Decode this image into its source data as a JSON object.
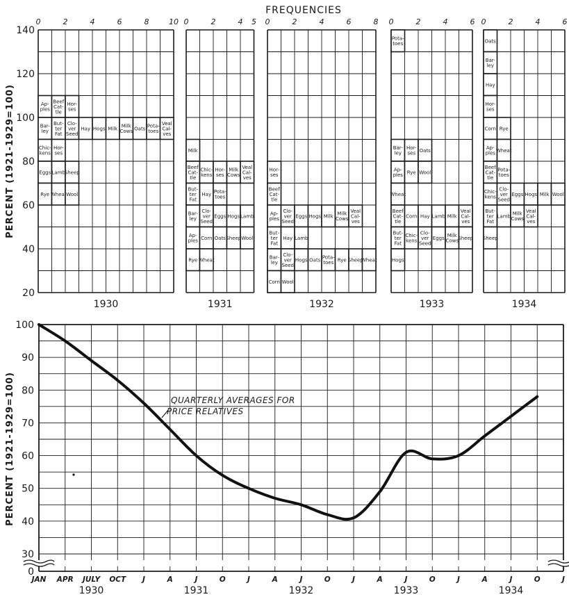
{
  "chart_data": [
    {
      "type": "histogram",
      "title": "FREQUENCIES",
      "ylabel": "PERCENT  (1921-1929=100)",
      "ylim": [
        20,
        140
      ],
      "yticks": [
        20,
        40,
        60,
        80,
        100,
        120,
        140
      ],
      "bin_width": 10,
      "panels": [
        {
          "year": "1930",
          "xticks": [
            "0",
            "2",
            "4",
            "6",
            "8",
            "10"
          ],
          "xmax": 10,
          "bins": [
            {
              "bin": 100,
              "items": [
                "Apples",
                "Beef Cattle",
                "Horses"
              ]
            },
            {
              "bin": 90,
              "items": [
                "Barley",
                "Butter Fat",
                "Clover Seed",
                "Hay",
                "Hogs",
                "Milk",
                "Milk Cows",
                "Oats",
                "Potatoes",
                "Veal Calves"
              ]
            },
            {
              "bin": 80,
              "items": [
                "Chickens",
                "Horses"
              ]
            },
            {
              "bin": 70,
              "items": [
                "Eggs",
                "Lambs",
                "Sheep"
              ]
            },
            {
              "bin": 60,
              "items": [
                "Rye",
                "Wheat",
                "Wool"
              ]
            }
          ]
        },
        {
          "year": "1931",
          "xticks": [
            "0",
            "2",
            "4",
            "5"
          ],
          "xmax": 5,
          "bins": [
            {
              "bin": 80,
              "items": [
                "Milk"
              ]
            },
            {
              "bin": 70,
              "items": [
                "Beef Cattle",
                "Chickens",
                "Horses",
                "Milk Cows",
                "Veal Calves"
              ]
            },
            {
              "bin": 60,
              "items": [
                "Butter Fat",
                "Hay",
                "Potatoes"
              ]
            },
            {
              "bin": 50,
              "items": [
                "Barley",
                "Clover Seed",
                "Eggs",
                "Hogs",
                "Lambs"
              ]
            },
            {
              "bin": 40,
              "items": [
                "Apples",
                "Corn",
                "Oats",
                "Sheep",
                "Wool"
              ]
            },
            {
              "bin": 30,
              "items": [
                "Rye",
                "Wheat"
              ]
            }
          ]
        },
        {
          "year": "1932",
          "xticks": [
            "0",
            "2",
            "4",
            "6",
            "8"
          ],
          "xmax": 8,
          "bins": [
            {
              "bin": 70,
              "items": [
                "Horses"
              ]
            },
            {
              "bin": 60,
              "items": [
                "Beef Cattle"
              ]
            },
            {
              "bin": 50,
              "items": [
                "Apples",
                "Clover Seed",
                "Eggs",
                "Hogs",
                "Milk",
                "Milk Cows",
                "Veal Calves"
              ]
            },
            {
              "bin": 40,
              "items": [
                "Butter Fat",
                "Hay",
                "Lambs"
              ]
            },
            {
              "bin": 30,
              "items": [
                "Barley",
                "Clover Seed",
                "Hogs",
                "Oats",
                "Potatoes",
                "Rye",
                "Sheep",
                "Wheat"
              ]
            },
            {
              "bin": 20,
              "items": [
                "Corn",
                "Wool"
              ]
            }
          ]
        },
        {
          "year": "1933",
          "xticks": [
            "0",
            "2",
            "4",
            "6"
          ],
          "xmax": 6,
          "bins": [
            {
              "bin": 130,
              "items": [
                "Potatoes"
              ]
            },
            {
              "bin": 80,
              "items": [
                "Barley",
                "Horses",
                "Oats"
              ]
            },
            {
              "bin": 70,
              "items": [
                "Apples",
                "Rye",
                "Wool"
              ]
            },
            {
              "bin": 60,
              "items": [
                "Wheat"
              ]
            },
            {
              "bin": 50,
              "items": [
                "Beef Cattle",
                "Corn",
                "Hay",
                "Lambs",
                "Milk",
                "Veal Calves"
              ]
            },
            {
              "bin": 40,
              "items": [
                "Butter Fat",
                "Chickens",
                "Clover Seed",
                "Eggs",
                "Milk Cows",
                "Sheep"
              ]
            },
            {
              "bin": 30,
              "items": [
                "Hogs"
              ]
            }
          ]
        },
        {
          "year": "1934",
          "xticks": [
            "0",
            "2",
            "4",
            "6"
          ],
          "xmax": 6,
          "bins": [
            {
              "bin": 130,
              "items": [
                "Oats"
              ]
            },
            {
              "bin": 120,
              "items": [
                "Barley"
              ]
            },
            {
              "bin": 110,
              "items": [
                "Hay"
              ]
            },
            {
              "bin": 100,
              "items": [
                "Horses"
              ]
            },
            {
              "bin": 90,
              "items": [
                "Corn",
                "Rye"
              ]
            },
            {
              "bin": 80,
              "items": [
                "Apples",
                "Wheat"
              ]
            },
            {
              "bin": 70,
              "items": [
                "Beef Cattle",
                "Potatoes"
              ]
            },
            {
              "bin": 60,
              "items": [
                "Chickens",
                "Clover Seed",
                "Eggs",
                "Hogs",
                "Milk",
                "Wool"
              ]
            },
            {
              "bin": 50,
              "items": [
                "Butter Fat",
                "Lambs",
                "Milk Cows",
                "Veal Calves"
              ]
            },
            {
              "bin": 40,
              "items": [
                "Sheep"
              ]
            }
          ]
        }
      ]
    },
    {
      "type": "line",
      "ylabel": "PERCENT  (1921-1929=100)",
      "ylim": [
        0,
        100
      ],
      "yticks": [
        0,
        30,
        40,
        50,
        60,
        70,
        80,
        90,
        100
      ],
      "annotation": "QUARTERLY AVERAGES FOR PRICE RELATIVES",
      "x_month_labels": [
        "JAN",
        "APR",
        "JULY",
        "OCT",
        "J",
        "A",
        "J",
        "O",
        "J",
        "A",
        "J",
        "O",
        "J",
        "A",
        "J",
        "O",
        "J",
        "A",
        "J",
        "O",
        "J"
      ],
      "x_year_labels": [
        "1930",
        "1931",
        "1932",
        "1933",
        "1934"
      ],
      "series": [
        {
          "values": [
            100,
            95,
            89,
            83,
            76,
            68,
            60,
            54,
            50,
            47,
            45,
            42,
            41,
            49,
            61,
            59,
            60,
            66,
            72,
            78
          ]
        }
      ]
    }
  ]
}
